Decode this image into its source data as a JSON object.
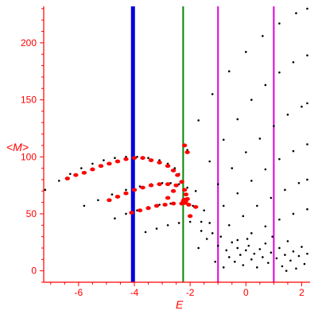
{
  "chart_data": {
    "type": "scatter",
    "xlabel": "E",
    "ylabel": "<M>",
    "xlim": [
      -7.25,
      2.3
    ],
    "ylim": [
      -10,
      232
    ],
    "xticks": [
      -6,
      -4,
      -2,
      0,
      2
    ],
    "yticks": [
      0,
      50,
      100,
      150,
      200
    ],
    "grid": false,
    "colors": {
      "axes": "#ff0000",
      "points": "#000000",
      "highlight": "#ff0000",
      "line_blue": "#0000dd",
      "line_green": "#008800",
      "line_magenta": "#dd00dd"
    },
    "vertical_lines": [
      {
        "x": -4.05,
        "color": "blue"
      },
      {
        "x": -2.25,
        "color": "green"
      },
      {
        "x": -1.0,
        "color": "magenta"
      },
      {
        "x": 1.0,
        "color": "magenta"
      }
    ],
    "series": [
      {
        "values": [
          {
            "x": -7.2,
            "y": 71
          },
          {
            "x": -6.7,
            "y": 79
          },
          {
            "x": -6.3,
            "y": 85
          },
          {
            "x": -5.9,
            "y": 90
          },
          {
            "x": -5.5,
            "y": 94
          },
          {
            "x": -5.1,
            "y": 97
          },
          {
            "x": -4.7,
            "y": 99
          },
          {
            "x": -4.3,
            "y": 100
          },
          {
            "x": -3.9,
            "y": 100
          },
          {
            "x": -3.5,
            "y": 99
          },
          {
            "x": -3.1,
            "y": 97
          },
          {
            "x": -2.8,
            "y": 94
          },
          {
            "x": -2.55,
            "y": 90
          },
          {
            "x": -2.4,
            "y": 85
          }
        ]
      },
      {
        "values": [
          {
            "x": -5.8,
            "y": 57
          },
          {
            "x": -5.3,
            "y": 62
          },
          {
            "x": -4.8,
            "y": 67
          },
          {
            "x": -4.3,
            "y": 71
          },
          {
            "x": -3.8,
            "y": 74
          },
          {
            "x": -3.4,
            "y": 76
          },
          {
            "x": -3.0,
            "y": 77
          },
          {
            "x": -2.7,
            "y": 77
          },
          {
            "x": -2.4,
            "y": 76
          },
          {
            "x": -2.1,
            "y": 73
          },
          {
            "x": -1.8,
            "y": 70
          }
        ]
      },
      {
        "values": [
          {
            "x": -4.7,
            "y": 46
          },
          {
            "x": -4.3,
            "y": 50
          },
          {
            "x": -3.9,
            "y": 53
          },
          {
            "x": -3.5,
            "y": 56
          },
          {
            "x": -3.1,
            "y": 58
          },
          {
            "x": -2.7,
            "y": 59
          },
          {
            "x": -2.3,
            "y": 59
          },
          {
            "x": -1.9,
            "y": 57
          },
          {
            "x": -1.5,
            "y": 53
          }
        ]
      },
      {
        "values": [
          {
            "x": -3.6,
            "y": 34
          },
          {
            "x": -3.2,
            "y": 37
          },
          {
            "x": -2.8,
            "y": 40
          },
          {
            "x": -2.4,
            "y": 42
          },
          {
            "x": -2.0,
            "y": 43
          },
          {
            "x": -1.6,
            "y": 43
          },
          {
            "x": -1.3,
            "y": 42
          }
        ]
      },
      {
        "values": [
          {
            "x": -2.1,
            "y": 106
          },
          {
            "x": -1.7,
            "y": 132
          },
          {
            "x": -1.2,
            "y": 155
          },
          {
            "x": -0.6,
            "y": 175
          },
          {
            "x": 0.0,
            "y": 192
          },
          {
            "x": 0.6,
            "y": 206
          },
          {
            "x": 1.2,
            "y": 217
          },
          {
            "x": 1.8,
            "y": 226
          },
          {
            "x": 2.2,
            "y": 230
          }
        ]
      },
      {
        "values": [
          {
            "x": -1.3,
            "y": 96
          },
          {
            "x": -0.8,
            "y": 115
          },
          {
            "x": -0.3,
            "y": 133
          },
          {
            "x": 0.2,
            "y": 150
          },
          {
            "x": 0.7,
            "y": 163
          },
          {
            "x": 1.2,
            "y": 174
          },
          {
            "x": 1.7,
            "y": 183
          },
          {
            "x": 2.2,
            "y": 189
          }
        ]
      },
      {
        "values": [
          {
            "x": -1.0,
            "y": 76
          },
          {
            "x": -0.5,
            "y": 90
          },
          {
            "x": 0.0,
            "y": 104
          },
          {
            "x": 0.5,
            "y": 116
          },
          {
            "x": 1.0,
            "y": 127
          },
          {
            "x": 1.5,
            "y": 137
          },
          {
            "x": 2.0,
            "y": 144
          },
          {
            "x": 2.2,
            "y": 147
          }
        ]
      },
      {
        "values": [
          {
            "x": -0.8,
            "y": 57
          },
          {
            "x": -0.3,
            "y": 68
          },
          {
            "x": 0.2,
            "y": 79
          },
          {
            "x": 0.7,
            "y": 89
          },
          {
            "x": 1.2,
            "y": 98
          },
          {
            "x": 1.7,
            "y": 105
          },
          {
            "x": 2.2,
            "y": 111
          }
        ]
      },
      {
        "values": [
          {
            "x": -0.6,
            "y": 40
          },
          {
            "x": -0.1,
            "y": 48
          },
          {
            "x": 0.4,
            "y": 57
          },
          {
            "x": 0.9,
            "y": 64
          },
          {
            "x": 1.4,
            "y": 71
          },
          {
            "x": 1.9,
            "y": 77
          },
          {
            "x": 2.2,
            "y": 80
          }
        ]
      },
      {
        "values": [
          {
            "x": -0.3,
            "y": 27
          },
          {
            "x": 0.2,
            "y": 33
          },
          {
            "x": 0.7,
            "y": 39
          },
          {
            "x": 1.2,
            "y": 45
          },
          {
            "x": 1.7,
            "y": 50
          },
          {
            "x": 2.2,
            "y": 54
          }
        ]
      }
    ],
    "scattered_points": [
      {
        "x": -1.6,
        "y": 35
      },
      {
        "x": -1.4,
        "y": 28
      },
      {
        "x": -1.2,
        "y": 33
      },
      {
        "x": -1.0,
        "y": 22
      },
      {
        "x": -0.9,
        "y": 30
      },
      {
        "x": -0.7,
        "y": 18
      },
      {
        "x": -0.6,
        "y": 12
      },
      {
        "x": -0.5,
        "y": 25
      },
      {
        "x": -0.4,
        "y": 8
      },
      {
        "x": -0.3,
        "y": 20
      },
      {
        "x": -0.2,
        "y": 14
      },
      {
        "x": -0.1,
        "y": 5
      },
      {
        "x": 0.0,
        "y": 18
      },
      {
        "x": 0.1,
        "y": 22
      },
      {
        "x": 0.2,
        "y": 10
      },
      {
        "x": 0.3,
        "y": 15
      },
      {
        "x": 0.4,
        "y": 3
      },
      {
        "x": 0.5,
        "y": 19
      },
      {
        "x": 0.6,
        "y": 12
      },
      {
        "x": 0.7,
        "y": 24
      },
      {
        "x": 0.8,
        "y": 7
      },
      {
        "x": 0.9,
        "y": 16
      },
      {
        "x": 1.1,
        "y": 11
      },
      {
        "x": 1.2,
        "y": 20
      },
      {
        "x": 1.3,
        "y": 4
      },
      {
        "x": 1.4,
        "y": 14
      },
      {
        "x": 1.5,
        "y": 26
      },
      {
        "x": 1.6,
        "y": 9
      },
      {
        "x": 1.7,
        "y": 17
      },
      {
        "x": 1.8,
        "y": 2
      },
      {
        "x": 1.9,
        "y": 13
      },
      {
        "x": 2.0,
        "y": 21
      },
      {
        "x": 2.1,
        "y": 6
      },
      {
        "x": 2.2,
        "y": 15
      },
      {
        "x": -1.1,
        "y": 8
      },
      {
        "x": -0.8,
        "y": 3
      },
      {
        "x": 0.05,
        "y": 28
      },
      {
        "x": 0.95,
        "y": 30
      },
      {
        "x": 1.45,
        "y": 0
      },
      {
        "x": -1.7,
        "y": 20
      }
    ],
    "highlighted_points": [
      {
        "x": -6.4,
        "y": 81
      },
      {
        "x": -6.1,
        "y": 84
      },
      {
        "x": -5.8,
        "y": 86
      },
      {
        "x": -5.5,
        "y": 89
      },
      {
        "x": -5.2,
        "y": 92
      },
      {
        "x": -4.9,
        "y": 94
      },
      {
        "x": -4.6,
        "y": 96
      },
      {
        "x": -4.3,
        "y": 98
      },
      {
        "x": -4.0,
        "y": 99
      },
      {
        "x": -3.7,
        "y": 99
      },
      {
        "x": -3.4,
        "y": 97
      },
      {
        "x": -3.1,
        "y": 95
      },
      {
        "x": -2.8,
        "y": 92
      },
      {
        "x": -2.6,
        "y": 88
      },
      {
        "x": -2.45,
        "y": 84
      },
      {
        "x": -4.9,
        "y": 62
      },
      {
        "x": -4.6,
        "y": 65
      },
      {
        "x": -4.3,
        "y": 68
      },
      {
        "x": -4.0,
        "y": 71
      },
      {
        "x": -3.7,
        "y": 73
      },
      {
        "x": -3.4,
        "y": 75
      },
      {
        "x": -3.1,
        "y": 76
      },
      {
        "x": -2.8,
        "y": 76
      },
      {
        "x": -2.5,
        "y": 75
      },
      {
        "x": -4.1,
        "y": 51
      },
      {
        "x": -3.8,
        "y": 53
      },
      {
        "x": -3.5,
        "y": 55
      },
      {
        "x": -3.2,
        "y": 57
      },
      {
        "x": -2.9,
        "y": 58
      },
      {
        "x": -2.6,
        "y": 59
      },
      {
        "x": -2.3,
        "y": 59
      },
      {
        "x": -2.05,
        "y": 58
      },
      {
        "x": -1.8,
        "y": 56
      },
      {
        "x": -2.15,
        "y": 67
      },
      {
        "x": -2.1,
        "y": 63
      },
      {
        "x": -2.2,
        "y": 71
      },
      {
        "x": -2.2,
        "y": 110
      },
      {
        "x": -2.1,
        "y": 104
      },
      {
        "x": -2.3,
        "y": 78
      },
      {
        "x": -2.6,
        "y": 70
      },
      {
        "x": -2.8,
        "y": 64
      },
      {
        "x": -2.0,
        "y": 48
      }
    ],
    "highlighted_large_points": [
      {
        "x": -2.2,
        "y": 61
      }
    ]
  }
}
